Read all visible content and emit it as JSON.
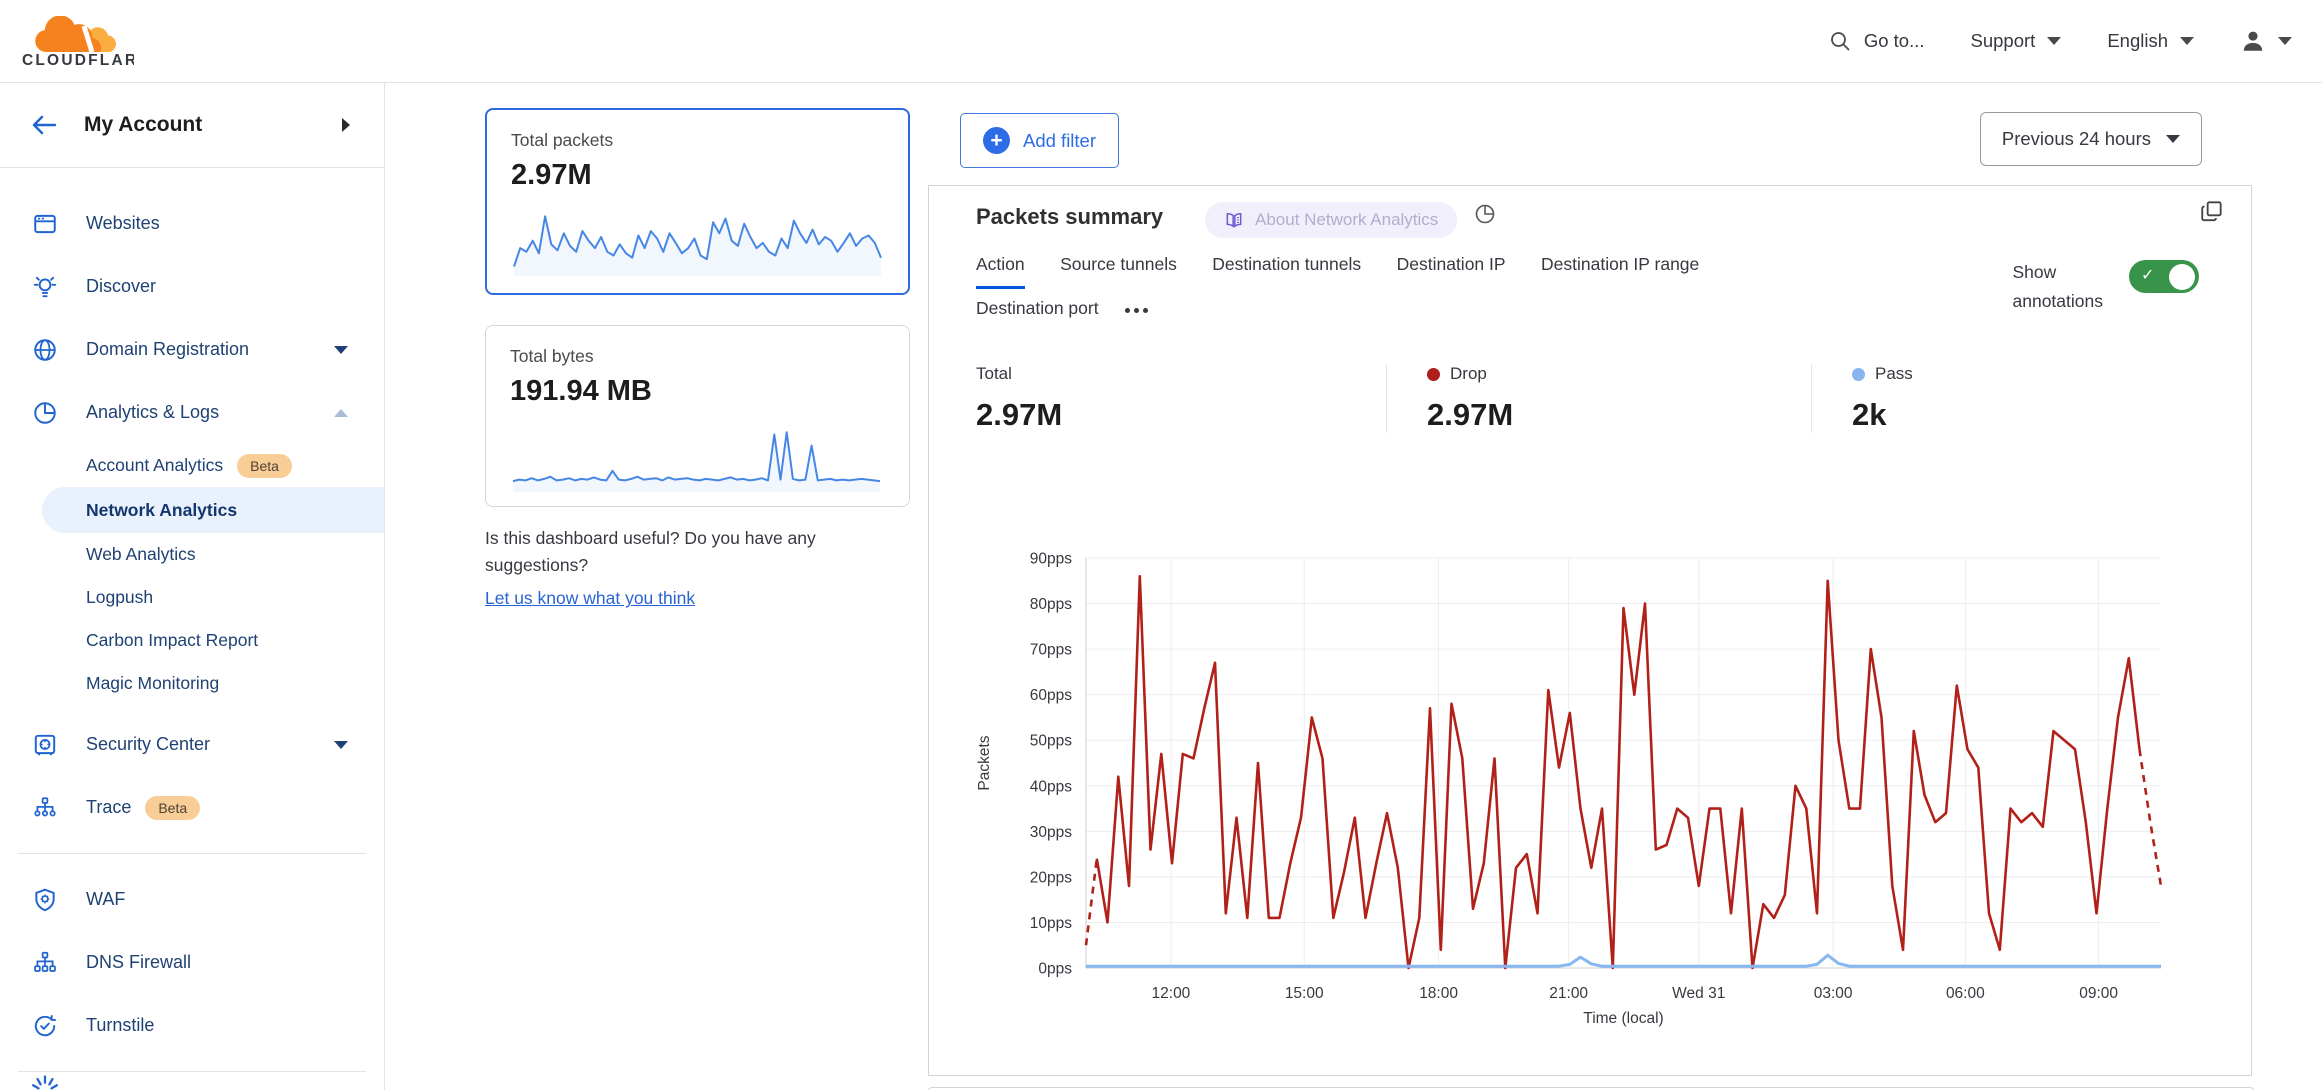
{
  "topbar": {
    "brand": "CLOUDFLARE",
    "goto_label": "Go to...",
    "support_label": "Support",
    "language_label": "English"
  },
  "sidebar": {
    "account_title": "My Account",
    "items": [
      {
        "label": "Websites",
        "icon": "browser-icon"
      },
      {
        "label": "Discover",
        "icon": "lightbulb-icon"
      },
      {
        "label": "Domain Registration",
        "icon": "globe-icon",
        "caret": "down"
      },
      {
        "label": "Analytics & Logs",
        "icon": "pie-icon",
        "caret": "up",
        "expanded": true
      }
    ],
    "analytics_subitems": [
      {
        "label": "Account Analytics",
        "badge": "Beta"
      },
      {
        "label": "Network Analytics",
        "selected": true
      },
      {
        "label": "Web Analytics"
      },
      {
        "label": "Logpush"
      },
      {
        "label": "Carbon Impact Report"
      },
      {
        "label": "Magic Monitoring"
      }
    ],
    "items_lower": [
      {
        "label": "Security Center",
        "icon": "safe-icon",
        "caret": "down"
      },
      {
        "label": "Trace",
        "icon": "trace-icon",
        "badge": "Beta"
      }
    ],
    "items_bottom": [
      {
        "label": "WAF",
        "icon": "shield-gear-icon"
      },
      {
        "label": "DNS Firewall",
        "icon": "dns-tree-icon"
      },
      {
        "label": "Turnstile",
        "icon": "refresh-check-icon"
      }
    ]
  },
  "summary_cards": [
    {
      "label": "Total packets",
      "value": "2.97M",
      "selected": true,
      "spark": [
        10,
        35,
        30,
        45,
        28,
        78,
        40,
        32,
        55,
        38,
        30,
        58,
        45,
        35,
        50,
        30,
        25,
        40,
        28,
        22,
        52,
        35,
        58,
        48,
        30,
        55,
        42,
        28,
        35,
        48,
        25,
        20,
        70,
        55,
        75,
        45,
        38,
        68,
        50,
        35,
        42,
        30,
        25,
        48,
        35,
        72,
        55,
        42,
        60,
        40,
        50,
        45,
        30,
        42,
        55,
        38,
        48,
        52,
        42,
        22
      ]
    },
    {
      "label": "Total bytes",
      "value": "191.94 MB",
      "selected": false,
      "spark": [
        12,
        14,
        13,
        16,
        13,
        15,
        18,
        13,
        14,
        16,
        13,
        15,
        14,
        17,
        14,
        13,
        26,
        14,
        13,
        15,
        18,
        14,
        15,
        16,
        13,
        17,
        14,
        15,
        16,
        14,
        13,
        15,
        14,
        13,
        15,
        17,
        14,
        15,
        13,
        14,
        16,
        13,
        75,
        14,
        78,
        15,
        13,
        14,
        60,
        13,
        14,
        15,
        13,
        14,
        13,
        14,
        15,
        14,
        13,
        12
      ]
    }
  ],
  "feedback": {
    "question": "Is this dashboard useful? Do you have any suggestions?",
    "link": "Let us know what you think"
  },
  "main": {
    "add_filter_label": "Add filter",
    "time_range_label": "Previous 24 hours",
    "panel": {
      "title": "Packets summary",
      "about_badge": "About Network Analytics",
      "tabs": [
        "Action",
        "Source tunnels",
        "Destination tunnels",
        "Destination IP",
        "Destination IP range",
        "Destination port"
      ],
      "active_tab": "Action",
      "show_annotations_line1": "Show",
      "show_annotations_line2": "annotations",
      "annotations_on": true,
      "stats": [
        {
          "label": "Total",
          "value": "2.97M",
          "dot_color": ""
        },
        {
          "label": "Drop",
          "value": "2.97M",
          "dot_color": "#b01d1d"
        },
        {
          "label": "Pass",
          "value": "2k",
          "dot_color": "#8ab4f0"
        }
      ]
    }
  },
  "chart_data": {
    "type": "line",
    "title": "Packets summary",
    "xlabel": "Time (local)",
    "ylabel": "Packets",
    "ymax": 90,
    "grid": true,
    "legend_position": "none",
    "yticks": [
      "0pps",
      "10pps",
      "20pps",
      "30pps",
      "40pps",
      "50pps",
      "60pps",
      "70pps",
      "80pps",
      "90pps"
    ],
    "xticks": [
      {
        "label": "12:00",
        "f": 0.079
      },
      {
        "label": "15:00",
        "f": 0.203
      },
      {
        "label": "18:00",
        "f": 0.328
      },
      {
        "label": "21:00",
        "f": 0.449
      },
      {
        "label": "Wed 31",
        "f": 0.57
      },
      {
        "label": "03:00",
        "f": 0.695
      },
      {
        "label": "06:00",
        "f": 0.818
      },
      {
        "label": "09:00",
        "f": 0.942
      }
    ],
    "series": [
      {
        "name": "Drop",
        "color": "#b22119",
        "unit": "pps",
        "total": "2.97M",
        "dashed_ends": true,
        "values": [
          5,
          24,
          10,
          42,
          18,
          86,
          26,
          47,
          23,
          47,
          46,
          57,
          67,
          12,
          33,
          11,
          45,
          11,
          11,
          23,
          33,
          55,
          46,
          11,
          21,
          33,
          11,
          23,
          34,
          22,
          0,
          11,
          57,
          4,
          58,
          46,
          13,
          23,
          46,
          0,
          22,
          25,
          12,
          61,
          44,
          56,
          35,
          22,
          35,
          0,
          79,
          60,
          80,
          26,
          27,
          35,
          33,
          18,
          35,
          35,
          12,
          35,
          0,
          14,
          11,
          16,
          40,
          35,
          12,
          85,
          50,
          35,
          35,
          70,
          55,
          18,
          4,
          52,
          38,
          32,
          34,
          62,
          48,
          44,
          12,
          4,
          35,
          32,
          34,
          31,
          52,
          50,
          48,
          32,
          12,
          35,
          55,
          68,
          48,
          32,
          18
        ]
      },
      {
        "name": "Pass",
        "color": "#87b6f1",
        "unit": "pps",
        "total": "2k",
        "values": [
          0.4,
          0.4,
          0.4,
          0.4,
          0.4,
          0.4,
          0.4,
          0.4,
          0.4,
          0.4,
          0.4,
          0.4,
          0.4,
          0.4,
          0.4,
          0.4,
          0.4,
          0.4,
          0.4,
          0.4,
          0.4,
          0.4,
          0.4,
          0.4,
          0.4,
          0.4,
          0.4,
          0.4,
          0.4,
          0.4,
          0.4,
          0.4,
          0.4,
          0.4,
          0.4,
          0.4,
          0.4,
          0.4,
          0.4,
          0.4,
          0.4,
          0.4,
          0.4,
          0.4,
          0.4,
          0.8,
          2.4,
          0.9,
          0.4,
          0.4,
          0.4,
          0.4,
          0.4,
          0.4,
          0.4,
          0.4,
          0.4,
          0.4,
          0.4,
          0.4,
          0.4,
          0.4,
          0.4,
          0.4,
          0.4,
          0.4,
          0.4,
          0.4,
          0.8,
          2.8,
          1.0,
          0.4,
          0.4,
          0.4,
          0.4,
          0.4,
          0.4,
          0.4,
          0.4,
          0.4,
          0.4,
          0.4,
          0.4,
          0.4,
          0.4,
          0.4,
          0.4,
          0.4,
          0.4,
          0.4,
          0.4,
          0.4,
          0.4,
          0.4,
          0.4,
          0.4,
          0.4,
          0.4,
          0.4,
          0.4,
          0.4
        ]
      }
    ]
  }
}
